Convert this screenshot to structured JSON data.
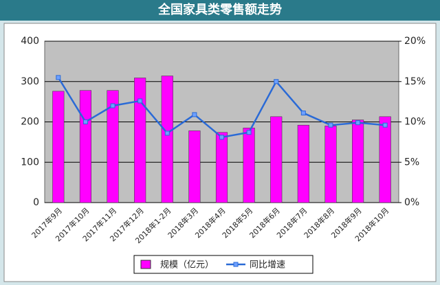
{
  "chart_data": {
    "type": "combo",
    "title": "全国家具类零售额走势",
    "categories": [
      "2017年9月",
      "2017年10月",
      "2017年11月",
      "2017年12月",
      "2018年1-2月",
      "2018年3月",
      "2018年4月",
      "2018年5月",
      "2018年6月",
      "2018年7月",
      "2018年8月",
      "2018年9月",
      "2018年10月"
    ],
    "series": [
      {
        "name": "规模（亿元）",
        "type": "bar",
        "color": "#ff00ff",
        "values": [
          276,
          278,
          278,
          309,
          314,
          178,
          174,
          185,
          213,
          192,
          190,
          205,
          213
        ]
      },
      {
        "name": "同比增速",
        "type": "line",
        "axis": "y2",
        "color": "#2a6ad6",
        "values": [
          15.5,
          10.0,
          12.0,
          12.6,
          8.6,
          10.9,
          8.1,
          8.7,
          15.0,
          11.1,
          9.6,
          9.9,
          9.6
        ]
      }
    ],
    "ylim": [
      0,
      400
    ],
    "yticks": [
      0,
      100,
      200,
      300,
      400
    ],
    "y2lim": [
      0,
      20
    ],
    "y2ticks": [
      {
        "value": 0,
        "label": "0%"
      },
      {
        "value": 5,
        "label": "5%"
      },
      {
        "value": 10,
        "label": "10%"
      },
      {
        "value": 15,
        "label": "15%"
      },
      {
        "value": 20,
        "label": "20%"
      }
    ],
    "grid": true
  }
}
